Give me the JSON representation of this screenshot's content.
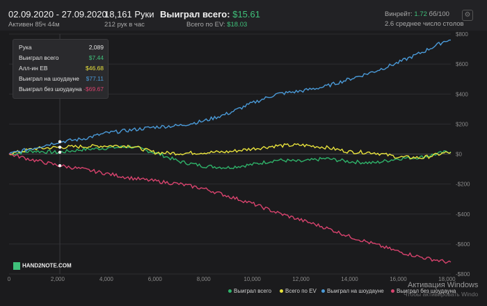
{
  "header": {
    "date_range": "02.09.2020 - 27.09.2020",
    "active": "Активен 85ч 44м",
    "hands": "18,161 Руки",
    "hands_per_hour": "212 рук в час",
    "won_total_label": "Выиграл всего:",
    "won_total_value": "$15.61",
    "ev_label": "Всего по EV:",
    "ev_value": "$18.03",
    "winrate_label": "Винрейт:",
    "winrate_value": "1.72",
    "winrate_unit": "бб/100",
    "avg_tables": "2.6 среднее число столов"
  },
  "tooltip": {
    "rows": [
      {
        "label": "Рука",
        "value": "2,089",
        "color": "#e6e6e6"
      },
      {
        "label": "Выиграл всего",
        "value": "$7.44",
        "color": "#3fc07a"
      },
      {
        "label": "Алл-ин EB",
        "value": "$46.68",
        "color": "#e8e23c"
      },
      {
        "label": "Выиграл на шоудауне",
        "value": "$77.11",
        "color": "#4a9ad8"
      },
      {
        "label": "Выиграл без шоудауна",
        "value": "-$69.67",
        "color": "#d9436e"
      }
    ]
  },
  "logo": "HAND2NOTE.COM",
  "watermark": {
    "line1": "Активация Windows",
    "line2": "Чтобы активировать Windo"
  },
  "chart_data": {
    "type": "line",
    "xlim": [
      0,
      18161
    ],
    "ylim": [
      -800,
      800
    ],
    "x_ticks": [
      0,
      2000,
      4000,
      6000,
      8000,
      10000,
      12000,
      14000,
      16000,
      18000
    ],
    "x_tick_labels": [
      "0",
      "2,000",
      "4,000",
      "6,000",
      "8,000",
      "10,000",
      "12,000",
      "14,000",
      "16,000",
      "18,000"
    ],
    "y_ticks": [
      800,
      600,
      400,
      200,
      0,
      -200,
      -400,
      -600,
      -800
    ],
    "y_tick_labels": [
      "$800",
      "$600",
      "$400",
      "$200",
      "$0",
      "-$200",
      "-$400",
      "-$600",
      "-$800"
    ],
    "hover_x": 2089,
    "series": [
      {
        "name": "Выиграл всего",
        "color": "#2fb36a",
        "x": [
          0,
          1000,
          2000,
          3000,
          4000,
          5000,
          6000,
          7000,
          8000,
          9000,
          10000,
          11000,
          12000,
          13000,
          14000,
          15000,
          16000,
          17000,
          18000
        ],
        "values": [
          0,
          20,
          10,
          30,
          40,
          50,
          10,
          -50,
          -80,
          -90,
          -70,
          -40,
          -50,
          -30,
          -50,
          -60,
          -30,
          -20,
          15
        ]
      },
      {
        "name": "Всего по EV",
        "color": "#e8e23c",
        "x": [
          0,
          1000,
          2000,
          3000,
          4000,
          5000,
          6000,
          7000,
          8000,
          9000,
          10000,
          11000,
          12000,
          13000,
          14000,
          15000,
          16000,
          17000,
          18000
        ],
        "values": [
          0,
          35,
          45,
          50,
          55,
          55,
          10,
          5,
          10,
          15,
          35,
          55,
          60,
          45,
          15,
          10,
          -20,
          -25,
          10
        ]
      },
      {
        "name": "Выиграл на шоудауне",
        "color": "#4a9ad8",
        "x": [
          0,
          1000,
          2000,
          3000,
          4000,
          5000,
          6000,
          7000,
          8000,
          9000,
          10000,
          11000,
          12000,
          13000,
          14000,
          15000,
          16000,
          17000,
          18000
        ],
        "values": [
          0,
          40,
          80,
          100,
          140,
          160,
          180,
          190,
          220,
          270,
          340,
          400,
          420,
          450,
          500,
          550,
          610,
          680,
          760
        ]
      },
      {
        "name": "Выиграл без шоудауна",
        "color": "#d9436e",
        "x": [
          0,
          1000,
          2000,
          3000,
          4000,
          5000,
          6000,
          7000,
          8000,
          9000,
          10000,
          11000,
          12000,
          13000,
          14000,
          15000,
          16000,
          17000,
          18000
        ],
        "values": [
          0,
          -40,
          -75,
          -100,
          -130,
          -160,
          -180,
          -200,
          -230,
          -280,
          -330,
          -390,
          -440,
          -490,
          -550,
          -600,
          -650,
          -690,
          -720
        ]
      }
    ]
  }
}
